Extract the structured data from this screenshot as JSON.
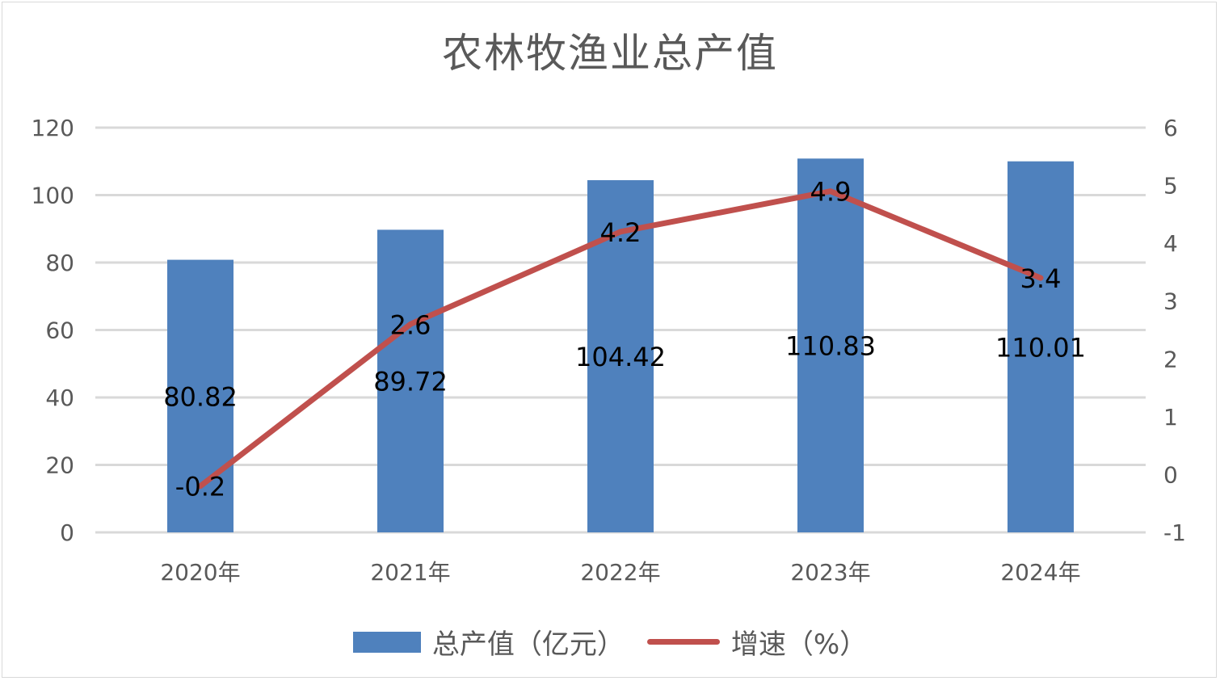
{
  "chart_data": {
    "type": "bar+line",
    "title": "农林牧渔业总产值",
    "categories": [
      "2020年",
      "2021年",
      "2022年",
      "2023年",
      "2024年"
    ],
    "series": [
      {
        "name": "总产值（亿元）",
        "type": "bar",
        "axis": "left",
        "color": "#4f81bd",
        "values": [
          80.82,
          89.72,
          104.42,
          110.83,
          110.01
        ],
        "labels": [
          "80.82",
          "89.72",
          "104.42",
          "110.83",
          "110.01"
        ]
      },
      {
        "name": "增速（%）",
        "type": "line",
        "axis": "right",
        "color": "#c0504d",
        "values": [
          -0.2,
          2.6,
          4.2,
          4.9,
          3.4
        ],
        "labels": [
          "-0.2",
          "2.6",
          "4.2",
          "4.9",
          "3.4"
        ]
      }
    ],
    "y_left": {
      "min": 0,
      "max": 120,
      "ticks": [
        "0",
        "20",
        "40",
        "60",
        "80",
        "100",
        "120"
      ]
    },
    "y_right": {
      "min": -1,
      "max": 6,
      "ticks": [
        "-1",
        "0",
        "1",
        "2",
        "3",
        "4",
        "5",
        "6"
      ]
    },
    "grid": true,
    "legend_position": "bottom"
  }
}
